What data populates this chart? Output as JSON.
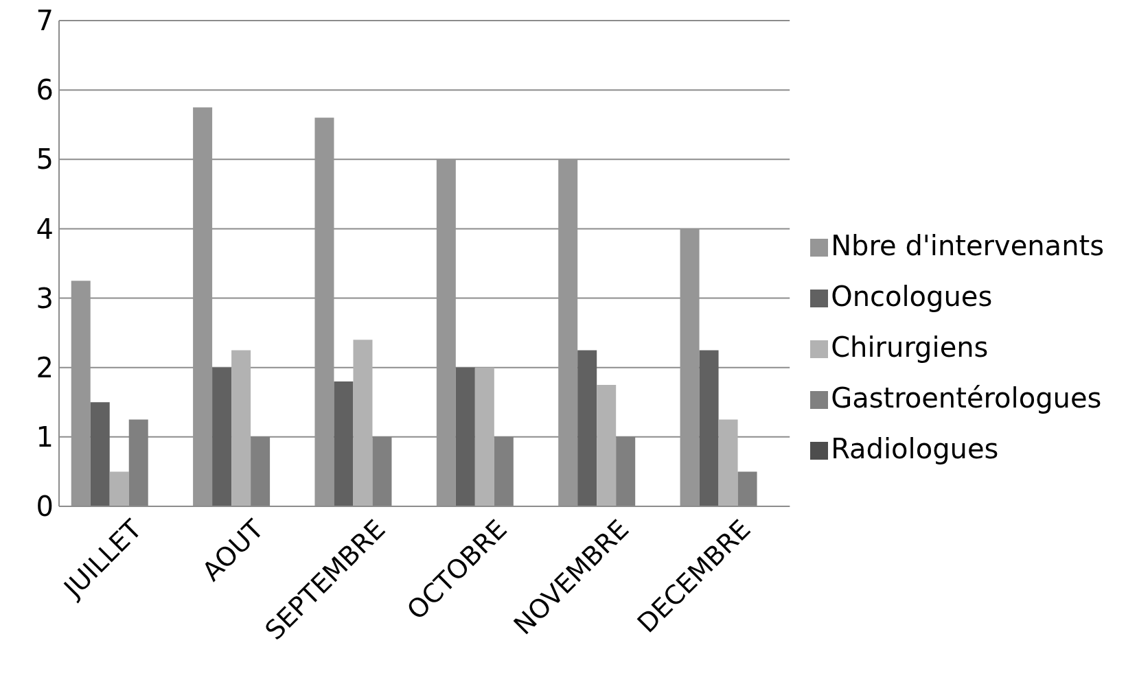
{
  "chart_data": {
    "type": "bar",
    "categories": [
      "JUILLET",
      "AOUT",
      "SEPTEMBRE",
      "OCTOBRE",
      "NOVEMBRE",
      "DECEMBRE"
    ],
    "series": [
      {
        "name": "Nbre d'intervenants",
        "color": "#969696",
        "values": [
          3.25,
          5.75,
          5.6,
          5,
          5,
          4
        ]
      },
      {
        "name": "Oncologues",
        "color": "#616161",
        "values": [
          1.5,
          2,
          1.8,
          2,
          2.25,
          2.25
        ]
      },
      {
        "name": "Chirurgiens",
        "color": "#b2b2b2",
        "values": [
          0.5,
          2.25,
          2.4,
          2,
          1.75,
          1.25
        ]
      },
      {
        "name": "Gastroentérologues",
        "color": "#808080",
        "values": [
          1.25,
          1,
          1,
          1,
          1,
          0.5
        ]
      },
      {
        "name": "Radiologues",
        "color": "#4d4d4d",
        "values": [
          null,
          null,
          null,
          null,
          null,
          null
        ]
      }
    ],
    "ylim": [
      0,
      7
    ],
    "yticks": [
      0,
      1,
      2,
      3,
      4,
      5,
      6,
      7
    ],
    "grid": "y",
    "legend": "right"
  }
}
